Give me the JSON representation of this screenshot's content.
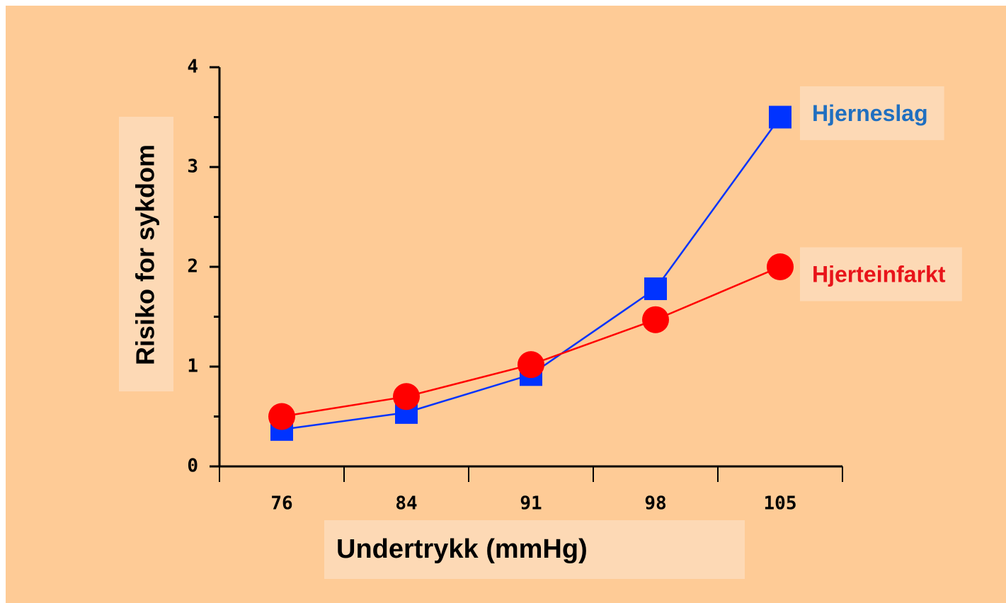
{
  "chart_data": {
    "type": "line",
    "xlabel": "Undertrykk (mmHg)",
    "ylabel": "Risiko for sykdom",
    "categories": [
      "76",
      "84",
      "91",
      "98",
      "105"
    ],
    "series": [
      {
        "name": "Hjerneslag",
        "color": "#0033ff",
        "label_color": "#1f6fc0",
        "marker": "square",
        "values": [
          0.37,
          0.54,
          0.92,
          1.78,
          3.5
        ]
      },
      {
        "name": "Hjerteinfarkt",
        "color": "#ff0000",
        "label_color": "#e8141a",
        "marker": "circle",
        "values": [
          0.5,
          0.7,
          1.02,
          1.47,
          2.0
        ]
      }
    ],
    "ylim": [
      0,
      4
    ],
    "yticks": [
      0,
      1,
      2,
      3,
      4
    ],
    "grid": false
  }
}
